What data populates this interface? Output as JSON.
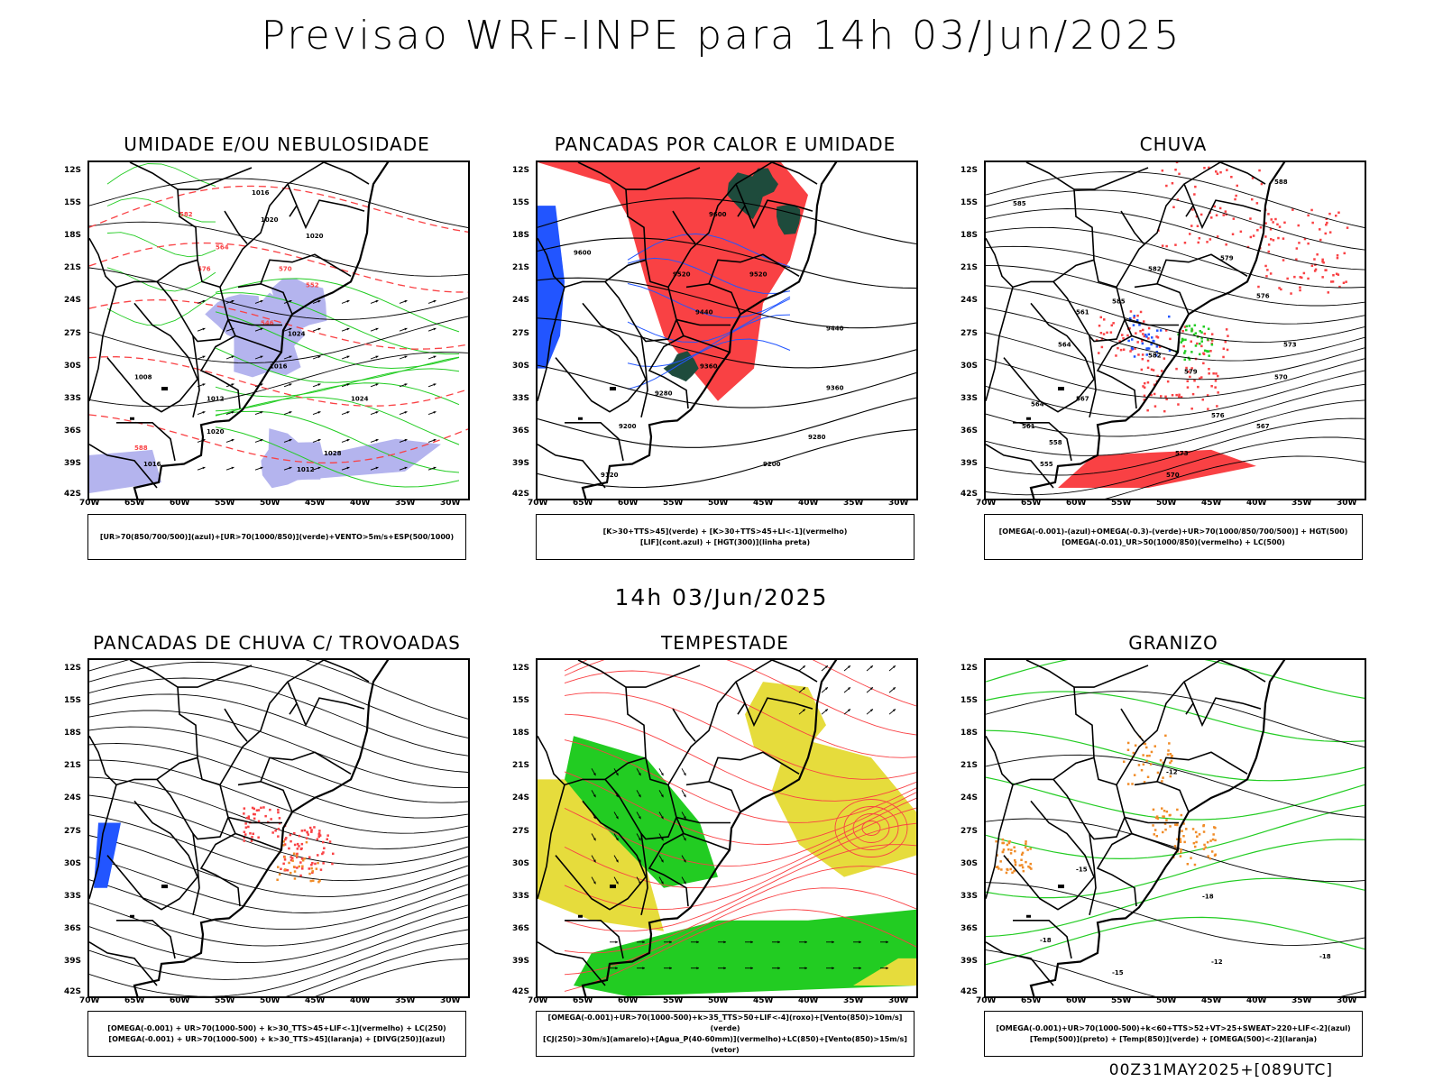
{
  "title": "Previsao WRF-INPE  para 14h 03/Jun/2025",
  "mid_title": "14h 03/Jun/2025",
  "footer": "00Z31MAY2025+[089UTC]",
  "axes": {
    "lat_labels": [
      "12S",
      "15S",
      "18S",
      "21S",
      "24S",
      "27S",
      "30S",
      "33S",
      "36S",
      "39S",
      "42S"
    ],
    "lon_labels": [
      "70W",
      "65W",
      "60W",
      "55W",
      "50W",
      "45W",
      "40W",
      "35W",
      "30W"
    ]
  },
  "colors": {
    "red": "#f94144",
    "green": "#22cc22",
    "blue": "#2255ff",
    "lavender": "#b4b4ee",
    "yellow": "#e6dc3c",
    "orange": "#f08c28",
    "darkgreen": "#1e4b3c"
  },
  "panels": [
    {
      "title": "UMIDADE E/OU NEBULOSIDADE",
      "legend": [
        "[UR>70(850/700/500)](azul)+[UR>70(1000/850)](verde)+VENTO>5m/s+ESP(500/1000)"
      ],
      "contour_labels": [
        "1016",
        "1020",
        "1020",
        "1024",
        "1016",
        "1012",
        "1008",
        "1016",
        "1020",
        "1024",
        "1028",
        "1012",
        "564",
        "570",
        "576",
        "582",
        "588",
        "552",
        "546"
      ]
    },
    {
      "title": "PANCADAS POR CALOR E UMIDADE",
      "legend": [
        "[K>30+TTS>45](verde) + [K>30+TTS>45+LI<-1](vermelho)",
        "[LIF](cont.azul) + [HGT(300)](linha preta)"
      ],
      "contour_labels": [
        "9600",
        "9520",
        "9440",
        "9360",
        "9280",
        "9200",
        "9120",
        "9600",
        "9520",
        "9440",
        "9360",
        "9280",
        "9200"
      ]
    },
    {
      "title": "CHUVA",
      "legend": [
        "[OMEGA(-0.001)-(azul)+OMEGA(-0.3)-(verde)+UR>70(1000/850/700/500)] + HGT(500)",
        "[OMEGA(-0.01)_UR>50(1000/850)(vermelho) + LC(500)"
      ],
      "contour_labels": [
        "585",
        "582",
        "579",
        "576",
        "573",
        "570",
        "567",
        "564",
        "561",
        "558",
        "555",
        "588",
        "585",
        "582",
        "579",
        "576",
        "573",
        "570",
        "567",
        "564",
        "561"
      ]
    },
    {
      "title": "PANCADAS DE CHUVA C/ TROVOADAS",
      "legend": [
        "[OMEGA(-0.001) + UR>70(1000-500) + k>30_TTS>45+LIF<-1](vermelho) + LC(250)",
        "[OMEGA(-0.001) + UR>70(1000-500) + k>30_TTS>45](laranja) + [DIVG(250)](azul)"
      ],
      "contour_labels": []
    },
    {
      "title": "TEMPESTADE",
      "legend": [
        "[OMEGA(-0.001)+UR>70(1000-500)+k>35_TTS>50+LIF<-4](roxo)+[Vento(850)>10m/s](verde)",
        "[CJ(250)>30m/s](amarelo)+[Agua_P(40-60mm)](vermelho)+LC(850)+[Vento(850)>15m/s](vetor)"
      ],
      "contour_labels": []
    },
    {
      "title": "GRANIZO",
      "legend": [
        "[OMEGA(-0.001)+UR>70(1000-500)+k<60+TTS>52+VT>25+SWEAT>220+LIF<-2](azul)",
        "[Temp(500)](preto) + [Temp(850)](verde) + [OMEGA(500)<-2](laranja)"
      ],
      "contour_labels": [
        "-12",
        "-15",
        "-18",
        "-18",
        "-15",
        "-12",
        "-18"
      ]
    }
  ]
}
